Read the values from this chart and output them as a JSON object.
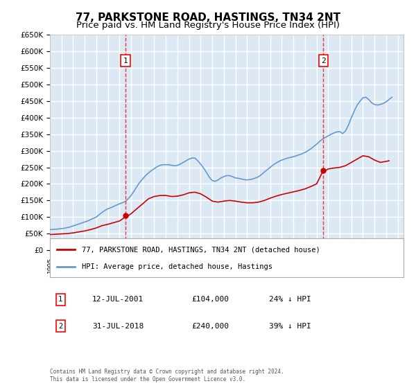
{
  "title": "77, PARKSTONE ROAD, HASTINGS, TN34 2NT",
  "subtitle": "Price paid vs. HM Land Registry's House Price Index (HPI)",
  "title_fontsize": 11,
  "subtitle_fontsize": 9.5,
  "ylim": [
    0,
    650000
  ],
  "yticks": [
    0,
    50000,
    100000,
    150000,
    200000,
    250000,
    300000,
    350000,
    400000,
    450000,
    500000,
    550000,
    600000,
    650000
  ],
  "xlim_start": 1995.0,
  "xlim_end": 2025.5,
  "background_color": "#dce9f5",
  "plot_bg_color": "#dce9f5",
  "grid_color": "#ffffff",
  "red_line_color": "#cc0000",
  "blue_line_color": "#6699cc",
  "transaction1_x": 2001.53,
  "transaction1_y": 104000,
  "transaction2_x": 2018.58,
  "transaction2_y": 240000,
  "legend_label_red": "77, PARKSTONE ROAD, HASTINGS, TN34 2NT (detached house)",
  "legend_label_blue": "HPI: Average price, detached house, Hastings",
  "annotation1_label": "1",
  "annotation1_date": "12-JUL-2001",
  "annotation1_price": "£104,000",
  "annotation1_hpi": "24% ↓ HPI",
  "annotation2_label": "2",
  "annotation2_date": "31-JUL-2018",
  "annotation2_price": "£240,000",
  "annotation2_hpi": "39% ↓ HPI",
  "footer": "Contains HM Land Registry data © Crown copyright and database right 2024.\nThis data is licensed under the Open Government Licence v3.0.",
  "hpi_data_x": [
    1995.0,
    1995.25,
    1995.5,
    1995.75,
    1996.0,
    1996.25,
    1996.5,
    1996.75,
    1997.0,
    1997.25,
    1997.5,
    1997.75,
    1998.0,
    1998.25,
    1998.5,
    1998.75,
    1999.0,
    1999.25,
    1999.5,
    1999.75,
    2000.0,
    2000.25,
    2000.5,
    2000.75,
    2001.0,
    2001.25,
    2001.5,
    2001.75,
    2002.0,
    2002.25,
    2002.5,
    2002.75,
    2003.0,
    2003.25,
    2003.5,
    2003.75,
    2004.0,
    2004.25,
    2004.5,
    2004.75,
    2005.0,
    2005.25,
    2005.5,
    2005.75,
    2006.0,
    2006.25,
    2006.5,
    2006.75,
    2007.0,
    2007.25,
    2007.5,
    2007.75,
    2008.0,
    2008.25,
    2008.5,
    2008.75,
    2009.0,
    2009.25,
    2009.5,
    2009.75,
    2010.0,
    2010.25,
    2010.5,
    2010.75,
    2011.0,
    2011.25,
    2011.5,
    2011.75,
    2012.0,
    2012.25,
    2012.5,
    2012.75,
    2013.0,
    2013.25,
    2013.5,
    2013.75,
    2014.0,
    2014.25,
    2014.5,
    2014.75,
    2015.0,
    2015.25,
    2015.5,
    2015.75,
    2016.0,
    2016.25,
    2016.5,
    2016.75,
    2017.0,
    2017.25,
    2017.5,
    2017.75,
    2018.0,
    2018.25,
    2018.5,
    2018.75,
    2019.0,
    2019.25,
    2019.5,
    2019.75,
    2020.0,
    2020.25,
    2020.5,
    2020.75,
    2021.0,
    2021.25,
    2021.5,
    2021.75,
    2022.0,
    2022.25,
    2022.5,
    2022.75,
    2023.0,
    2023.25,
    2023.5,
    2023.75,
    2024.0,
    2024.25,
    2024.5
  ],
  "hpi_data_y": [
    62000,
    62500,
    63000,
    64000,
    65000,
    66000,
    68000,
    70000,
    73000,
    76000,
    79000,
    82000,
    85000,
    88000,
    92000,
    96000,
    100000,
    107000,
    114000,
    120000,
    125000,
    128000,
    132000,
    136000,
    140000,
    143000,
    147000,
    155000,
    165000,
    178000,
    192000,
    205000,
    215000,
    225000,
    233000,
    240000,
    246000,
    252000,
    256000,
    258000,
    258000,
    258000,
    256000,
    255000,
    256000,
    260000,
    265000,
    270000,
    275000,
    278000,
    278000,
    270000,
    260000,
    248000,
    235000,
    220000,
    210000,
    208000,
    212000,
    218000,
    222000,
    225000,
    225000,
    222000,
    218000,
    217000,
    215000,
    213000,
    212000,
    213000,
    215000,
    218000,
    222000,
    228000,
    236000,
    243000,
    250000,
    257000,
    263000,
    268000,
    272000,
    275000,
    278000,
    280000,
    282000,
    285000,
    288000,
    291000,
    295000,
    300000,
    306000,
    313000,
    320000,
    328000,
    335000,
    340000,
    345000,
    350000,
    354000,
    357000,
    358000,
    352000,
    360000,
    378000,
    400000,
    420000,
    438000,
    450000,
    460000,
    462000,
    455000,
    445000,
    440000,
    438000,
    440000,
    443000,
    448000,
    455000,
    462000
  ],
  "price_data_x": [
    1995.0,
    1995.5,
    1996.0,
    1996.5,
    1997.0,
    1997.5,
    1998.0,
    1998.5,
    1999.0,
    1999.5,
    2000.0,
    2000.5,
    2001.0,
    2001.5,
    2001.75,
    2002.0,
    2002.5,
    2003.0,
    2003.5,
    2004.0,
    2004.5,
    2005.0,
    2005.5,
    2006.0,
    2006.5,
    2007.0,
    2007.5,
    2008.0,
    2008.5,
    2009.0,
    2009.5,
    2010.0,
    2010.5,
    2011.0,
    2011.5,
    2012.0,
    2012.5,
    2013.0,
    2013.5,
    2014.0,
    2014.5,
    2015.0,
    2015.5,
    2016.0,
    2016.5,
    2017.0,
    2017.5,
    2018.0,
    2018.5,
    2018.75,
    2019.0,
    2019.5,
    2020.0,
    2020.5,
    2021.0,
    2021.5,
    2022.0,
    2022.5,
    2023.0,
    2023.5,
    2024.0,
    2024.25
  ],
  "price_data_y": [
    47000,
    48000,
    49000,
    50000,
    52000,
    55000,
    58000,
    62000,
    67000,
    74000,
    78000,
    83000,
    88000,
    100000,
    104000,
    110000,
    125000,
    140000,
    155000,
    162000,
    165000,
    165000,
    162000,
    163000,
    167000,
    173000,
    175000,
    170000,
    160000,
    148000,
    145000,
    148000,
    150000,
    148000,
    145000,
    143000,
    143000,
    145000,
    150000,
    157000,
    163000,
    168000,
    172000,
    176000,
    180000,
    185000,
    192000,
    200000,
    235000,
    240000,
    245000,
    248000,
    250000,
    255000,
    265000,
    275000,
    285000,
    282000,
    272000,
    265000,
    268000,
    270000
  ]
}
